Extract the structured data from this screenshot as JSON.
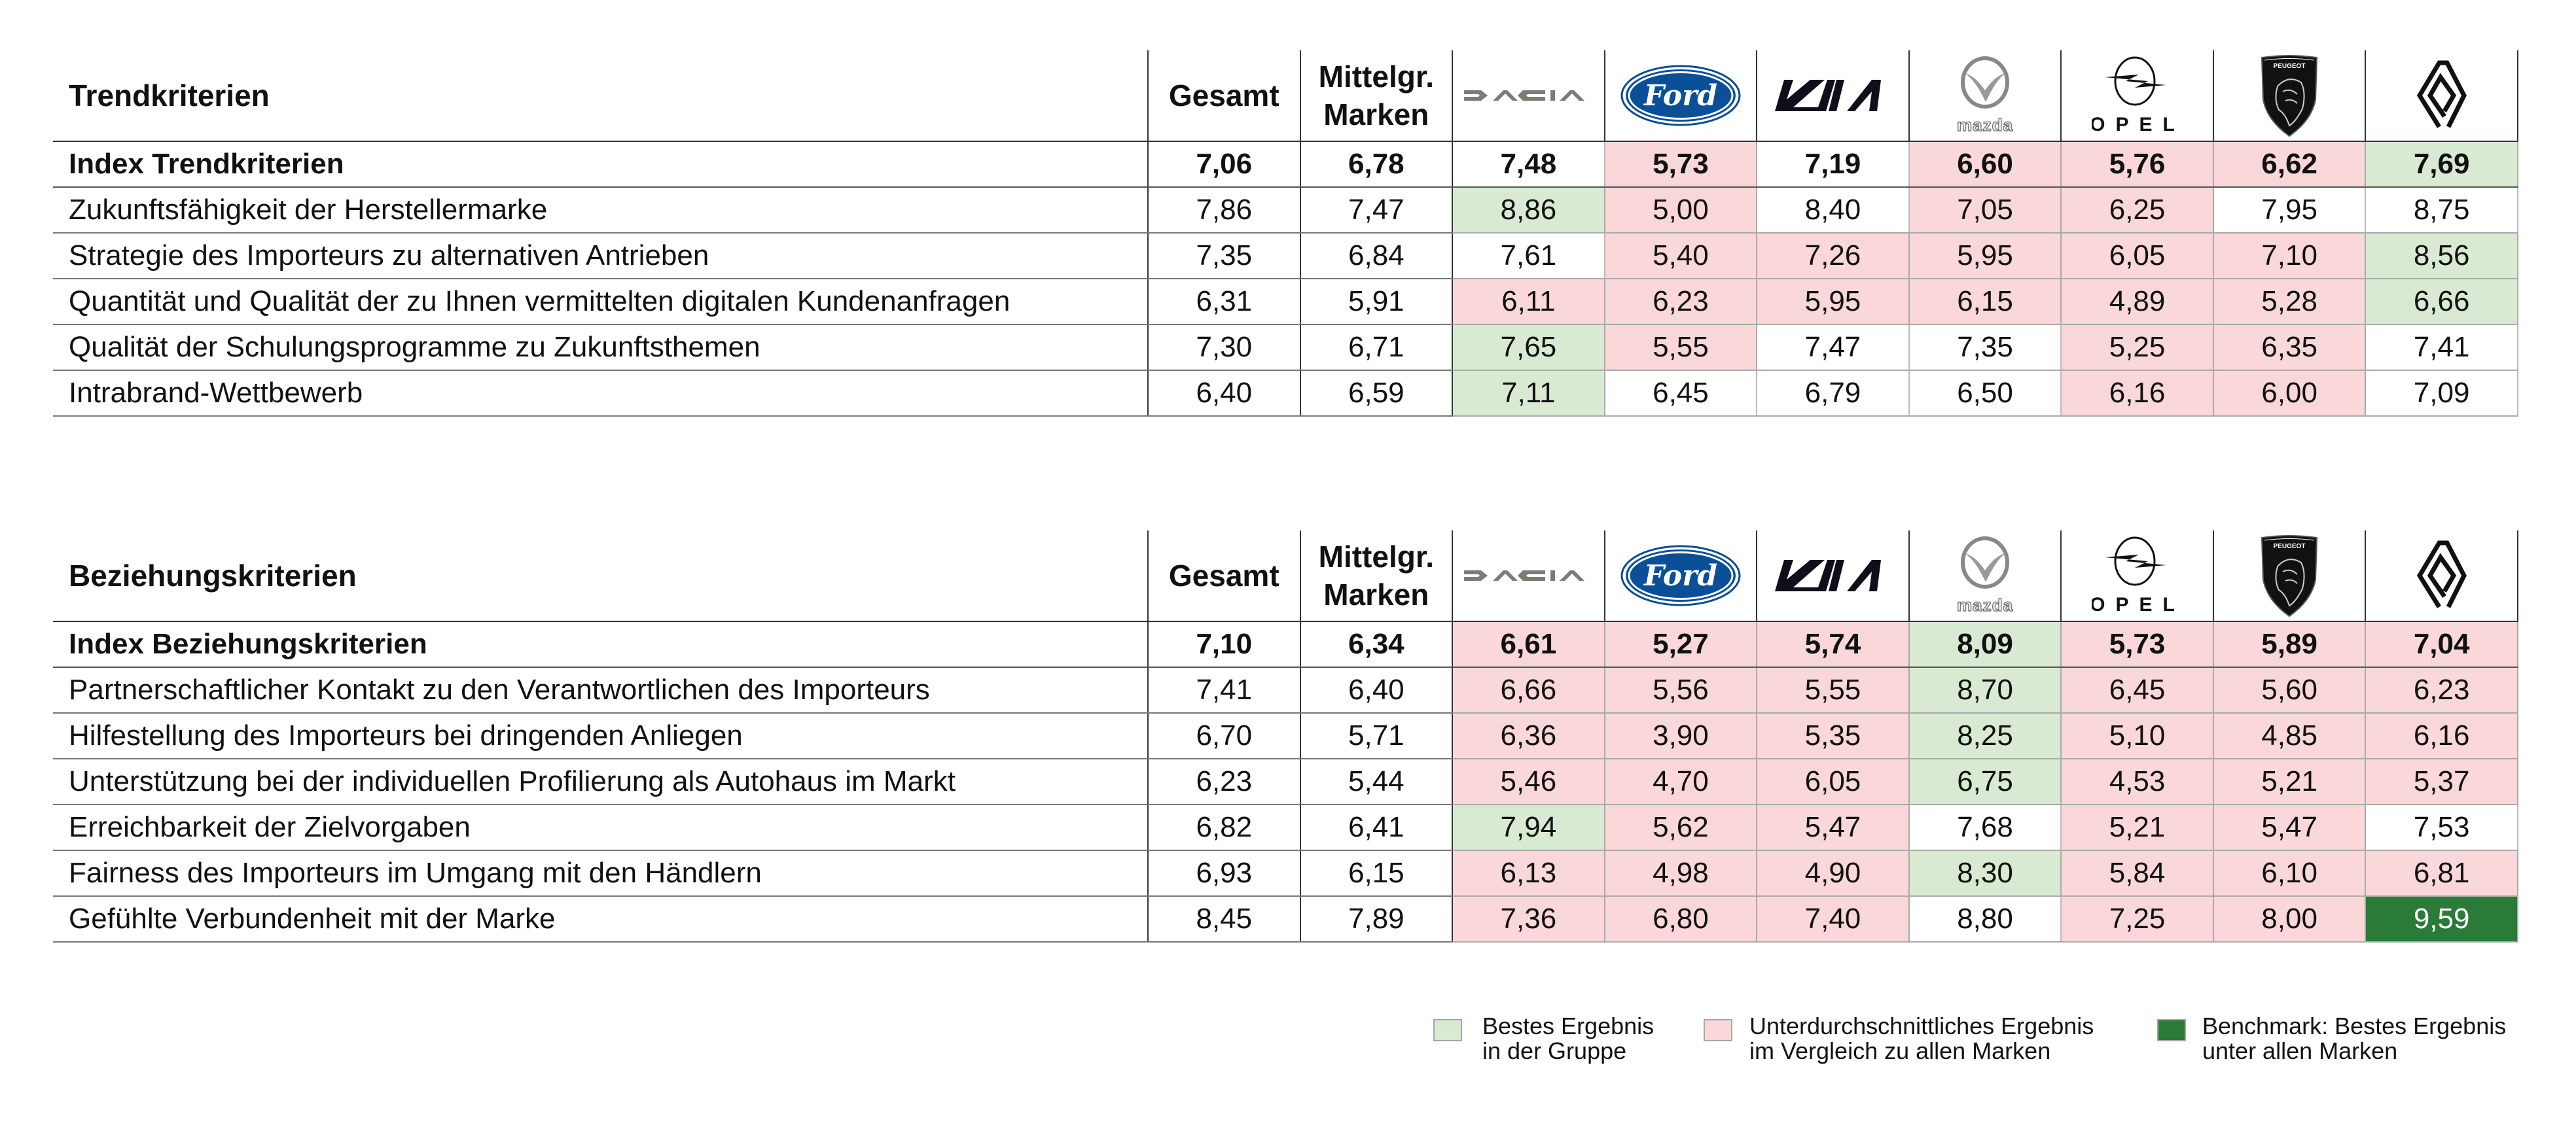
{
  "colors": {
    "best_in_group": "#d9ead3",
    "below_average": "#fad7d8",
    "benchmark": "#2a7a38"
  },
  "columns": {
    "gesamt": "Gesamt",
    "mittelgr_line1": "Mittelgr.",
    "mittelgr_line2": "Marken",
    "brands": [
      {
        "name": "Dacia",
        "logo_text": "DACIA",
        "icon": "dacia-logo-icon"
      },
      {
        "name": "Ford",
        "logo_text": "Ford",
        "icon": "ford-logo-icon"
      },
      {
        "name": "Kia",
        "logo_text": "KIA",
        "icon": "kia-logo-icon"
      },
      {
        "name": "Mazda",
        "logo_text": "mazda",
        "icon": "mazda-logo-icon"
      },
      {
        "name": "Opel",
        "logo_text": "OPEL",
        "icon": "opel-logo-icon"
      },
      {
        "name": "Peugeot",
        "logo_text": "PEUGEOT",
        "icon": "peugeot-logo-icon"
      },
      {
        "name": "Renault",
        "logo_text": "",
        "icon": "renault-logo-icon"
      }
    ]
  },
  "tables": [
    {
      "title": "Trendkriterien",
      "rows": [
        {
          "label": "Index Trendkriterien",
          "index": true,
          "gesamt": "7,06",
          "mittelgr": "6,78",
          "values": [
            "7,48",
            "5,73",
            "7,19",
            "6,60",
            "5,76",
            "6,62",
            "7,69"
          ],
          "status": [
            "none",
            "below",
            "none",
            "below",
            "below",
            "below",
            "best"
          ]
        },
        {
          "label": "Zukunftsfähigkeit der Herstellermarke",
          "index": false,
          "gesamt": "7,86",
          "mittelgr": "7,47",
          "values": [
            "8,86",
            "5,00",
            "8,40",
            "7,05",
            "6,25",
            "7,95",
            "8,75"
          ],
          "status": [
            "best",
            "below",
            "none",
            "below",
            "below",
            "none",
            "none"
          ]
        },
        {
          "label": "Strategie des Importeurs zu alternativen Antrieben",
          "index": false,
          "gesamt": "7,35",
          "mittelgr": "6,84",
          "values": [
            "7,61",
            "5,40",
            "7,26",
            "5,95",
            "6,05",
            "7,10",
            "8,56"
          ],
          "status": [
            "none",
            "below",
            "below",
            "below",
            "below",
            "below",
            "best"
          ]
        },
        {
          "label": "Quantität und Qualität der zu Ihnen vermittelten digitalen Kundenanfragen",
          "index": false,
          "gesamt": "6,31",
          "mittelgr": "5,91",
          "values": [
            "6,11",
            "6,23",
            "5,95",
            "6,15",
            "4,89",
            "5,28",
            "6,66"
          ],
          "status": [
            "below",
            "below",
            "below",
            "below",
            "below",
            "below",
            "best"
          ]
        },
        {
          "label": "Qualität der Schulungsprogramme zu Zukunftsthemen",
          "index": false,
          "gesamt": "7,30",
          "mittelgr": "6,71",
          "values": [
            "7,65",
            "5,55",
            "7,47",
            "7,35",
            "5,25",
            "6,35",
            "7,41"
          ],
          "status": [
            "best",
            "below",
            "none",
            "none",
            "below",
            "below",
            "none"
          ]
        },
        {
          "label": "Intrabrand-Wettbewerb",
          "index": false,
          "gesamt": "6,40",
          "mittelgr": "6,59",
          "values": [
            "7,11",
            "6,45",
            "6,79",
            "6,50",
            "6,16",
            "6,00",
            "7,09"
          ],
          "status": [
            "best",
            "none",
            "none",
            "none",
            "below",
            "below",
            "none"
          ]
        }
      ]
    },
    {
      "title": "Beziehungskriterien",
      "rows": [
        {
          "label": "Index Beziehungskriterien",
          "index": true,
          "gesamt": "7,10",
          "mittelgr": "6,34",
          "values": [
            "6,61",
            "5,27",
            "5,74",
            "8,09",
            "5,73",
            "5,89",
            "7,04"
          ],
          "status": [
            "below",
            "below",
            "below",
            "best",
            "below",
            "below",
            "below"
          ]
        },
        {
          "label": "Partnerschaftlicher Kontakt zu den Verantwortlichen des Importeurs",
          "index": false,
          "gesamt": "7,41",
          "mittelgr": "6,40",
          "values": [
            "6,66",
            "5,56",
            "5,55",
            "8,70",
            "6,45",
            "5,60",
            "6,23"
          ],
          "status": [
            "below",
            "below",
            "below",
            "best",
            "below",
            "below",
            "below"
          ]
        },
        {
          "label": "Hilfestellung des Importeurs bei dringenden Anliegen",
          "index": false,
          "gesamt": "6,70",
          "mittelgr": "5,71",
          "values": [
            "6,36",
            "3,90",
            "5,35",
            "8,25",
            "5,10",
            "4,85",
            "6,16"
          ],
          "status": [
            "below",
            "below",
            "below",
            "best",
            "below",
            "below",
            "below"
          ]
        },
        {
          "label": "Unterstützung bei der individuellen Profilierung als Autohaus im Markt",
          "index": false,
          "gesamt": "6,23",
          "mittelgr": "5,44",
          "values": [
            "5,46",
            "4,70",
            "6,05",
            "6,75",
            "4,53",
            "5,21",
            "5,37"
          ],
          "status": [
            "below",
            "below",
            "below",
            "best",
            "below",
            "below",
            "below"
          ]
        },
        {
          "label": "Erreichbarkeit der Zielvorgaben",
          "index": false,
          "gesamt": "6,82",
          "mittelgr": "6,41",
          "values": [
            "7,94",
            "5,62",
            "5,47",
            "7,68",
            "5,21",
            "5,47",
            "7,53"
          ],
          "status": [
            "best",
            "below",
            "below",
            "none",
            "below",
            "below",
            "none"
          ]
        },
        {
          "label": "Fairness des Importeurs im Umgang mit den Händlern",
          "index": false,
          "gesamt": "6,93",
          "mittelgr": "6,15",
          "values": [
            "6,13",
            "4,98",
            "4,90",
            "8,30",
            "5,84",
            "6,10",
            "6,81"
          ],
          "status": [
            "below",
            "below",
            "below",
            "best",
            "below",
            "below",
            "below"
          ]
        },
        {
          "label": "Gefühlte Verbundenheit mit der Marke",
          "index": false,
          "gesamt": "8,45",
          "mittelgr": "7,89",
          "values": [
            "7,36",
            "6,80",
            "7,40",
            "8,80",
            "7,25",
            "8,00",
            "9,59"
          ],
          "status": [
            "below",
            "below",
            "below",
            "none",
            "below",
            "below",
            "bench"
          ]
        }
      ]
    }
  ],
  "legend": [
    {
      "line1": "Bestes Ergebnis",
      "line2": "in der Gruppe",
      "key": "best"
    },
    {
      "line1": "Unterdurchschnittliches Ergebnis",
      "line2": "im Vergleich zu allen Marken",
      "key": "below"
    },
    {
      "line1": "Benchmark: Bestes Ergebnis",
      "line2": "unter allen Marken",
      "key": "bench"
    }
  ]
}
